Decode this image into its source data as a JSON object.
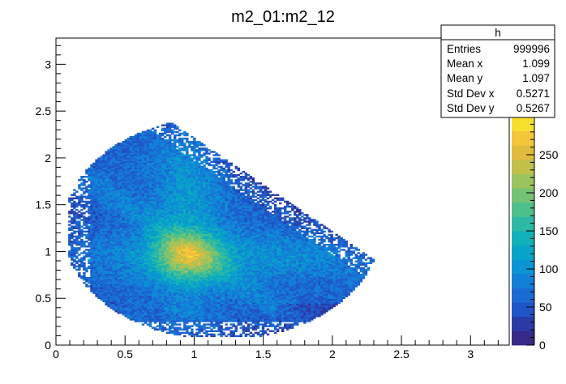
{
  "chart_data": {
    "type": "heatmap",
    "title": "m2_01:m2_12",
    "xlabel": "",
    "ylabel": "",
    "xlim": [
      0,
      3.28
    ],
    "ylim": [
      0,
      3.28
    ],
    "x_ticks": [
      0,
      0.5,
      1,
      1.5,
      2,
      2.5,
      3
    ],
    "x_tick_labels": [
      "0",
      "0.5",
      "1",
      "1.5",
      "2",
      "2.5",
      "3"
    ],
    "y_ticks": [
      0,
      0.5,
      1,
      1.5,
      2,
      2.5,
      3
    ],
    "y_tick_labels": [
      "0",
      "0.5",
      "1",
      "1.5",
      "2",
      "2.5",
      "3"
    ],
    "z_range": [
      0,
      300
    ],
    "z_ticks": [
      0,
      50,
      100,
      150,
      200,
      250
    ],
    "z_tick_labels": [
      "0",
      "50",
      "100",
      "150",
      "200",
      "250"
    ],
    "palette": [
      "#352a87",
      "#2a3ba6",
      "#1f55c6",
      "#1a6ad3",
      "#1380d8",
      "#0a94d2",
      "#08a4c8",
      "#12b1b9",
      "#2db9a3",
      "#4fbf8c",
      "#74c274",
      "#9bc45e",
      "#c0c04a",
      "#e0bb3e",
      "#f6c63a",
      "#f9df2d"
    ],
    "peak_region": {
      "x": 0.95,
      "y": 0.95
    },
    "grid": false,
    "legend": "top-right",
    "stats": {
      "name": "h",
      "rows": [
        {
          "label": "Entries",
          "value": "999996"
        },
        {
          "label": "Mean x",
          "value": "1.099"
        },
        {
          "label": "Mean y",
          "value": "1.097"
        },
        {
          "label": "Std Dev x",
          "value": "0.5271"
        },
        {
          "label": "Std Dev y",
          "value": "0.5267"
        }
      ]
    }
  }
}
